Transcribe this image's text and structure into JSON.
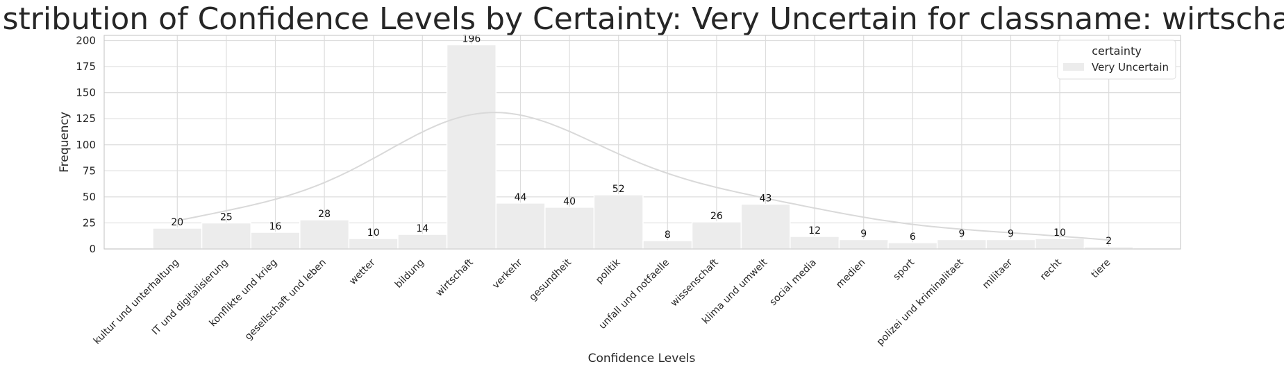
{
  "chart_data": {
    "type": "bar",
    "title": "Distribution of Confidence Levels by Certainty: Very Uncertain for classname: wirtschaft",
    "xlabel": "Confidence Levels",
    "ylabel": "Frequency",
    "ylim": [
      0,
      205
    ],
    "yticks": [
      0,
      25,
      50,
      75,
      100,
      125,
      150,
      175,
      200
    ],
    "grid": true,
    "legend": {
      "title": "certainty",
      "placement": "top-right"
    },
    "categories": [
      "kultur und unterhaltung",
      "IT und digitalisierung",
      "konflikte und krieg",
      "gesellschaft und leben",
      "wetter",
      "bildung",
      "wirtschaft",
      "verkehr",
      "gesundheit",
      "politik",
      "unfall und notfaelle",
      "wissenschaft",
      "klima und umwelt",
      "social media",
      "medien",
      "sport",
      "polizei und kriminalitaet",
      "militaer",
      "recht",
      "tiere"
    ],
    "series": [
      {
        "name": "Very Uncertain",
        "color": "#ececec",
        "values": [
          20,
          25,
          16,
          28,
          10,
          14,
          196,
          44,
          40,
          52,
          8,
          26,
          43,
          12,
          9,
          6,
          9,
          9,
          10,
          2
        ]
      }
    ],
    "kde_color": "#d9d9d9"
  }
}
